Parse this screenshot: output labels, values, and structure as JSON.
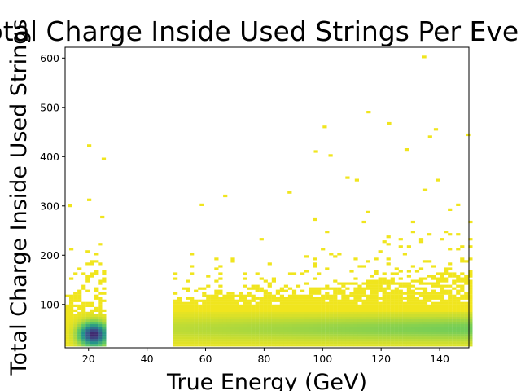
{
  "chart_data": {
    "type": "heatmap",
    "title": "Total Charge Inside Used Strings Per Event",
    "xlabel": "True Energy (GeV)",
    "ylabel": "Total Charge Inside Used Strings",
    "xlim": [
      12,
      150
    ],
    "ylim": [
      12,
      622
    ],
    "xticks": [
      20,
      40,
      60,
      80,
      100,
      120,
      140
    ],
    "yticks": [
      100,
      200,
      300,
      400,
      500,
      600
    ],
    "grid": false,
    "colormap": "viridis",
    "low_density_color": "#f0e51e",
    "high_density_color": "#3b2c7e",
    "regions": [
      {
        "x_range": [
          12,
          25
        ],
        "dense_y_range": [
          15,
          120
        ],
        "peak": [
          21,
          37
        ]
      },
      {
        "x_range": [
          49,
          150
        ],
        "dense_y_range": [
          15,
          110
        ],
        "peak": [
          null,
          null
        ]
      }
    ],
    "outliers": [
      [
        19.5,
        420
      ],
      [
        24.5,
        393
      ],
      [
        19.5,
        310
      ],
      [
        13,
        298
      ],
      [
        24,
        275
      ],
      [
        102,
        400
      ],
      [
        100,
        458
      ],
      [
        97,
        408
      ],
      [
        115,
        488
      ],
      [
        122,
        465
      ],
      [
        128,
        412
      ],
      [
        134,
        600
      ],
      [
        136,
        438
      ],
      [
        138,
        453
      ],
      [
        149,
        442
      ],
      [
        58,
        300
      ],
      [
        66,
        318
      ],
      [
        88,
        325
      ],
      [
        111,
        350
      ]
    ]
  }
}
